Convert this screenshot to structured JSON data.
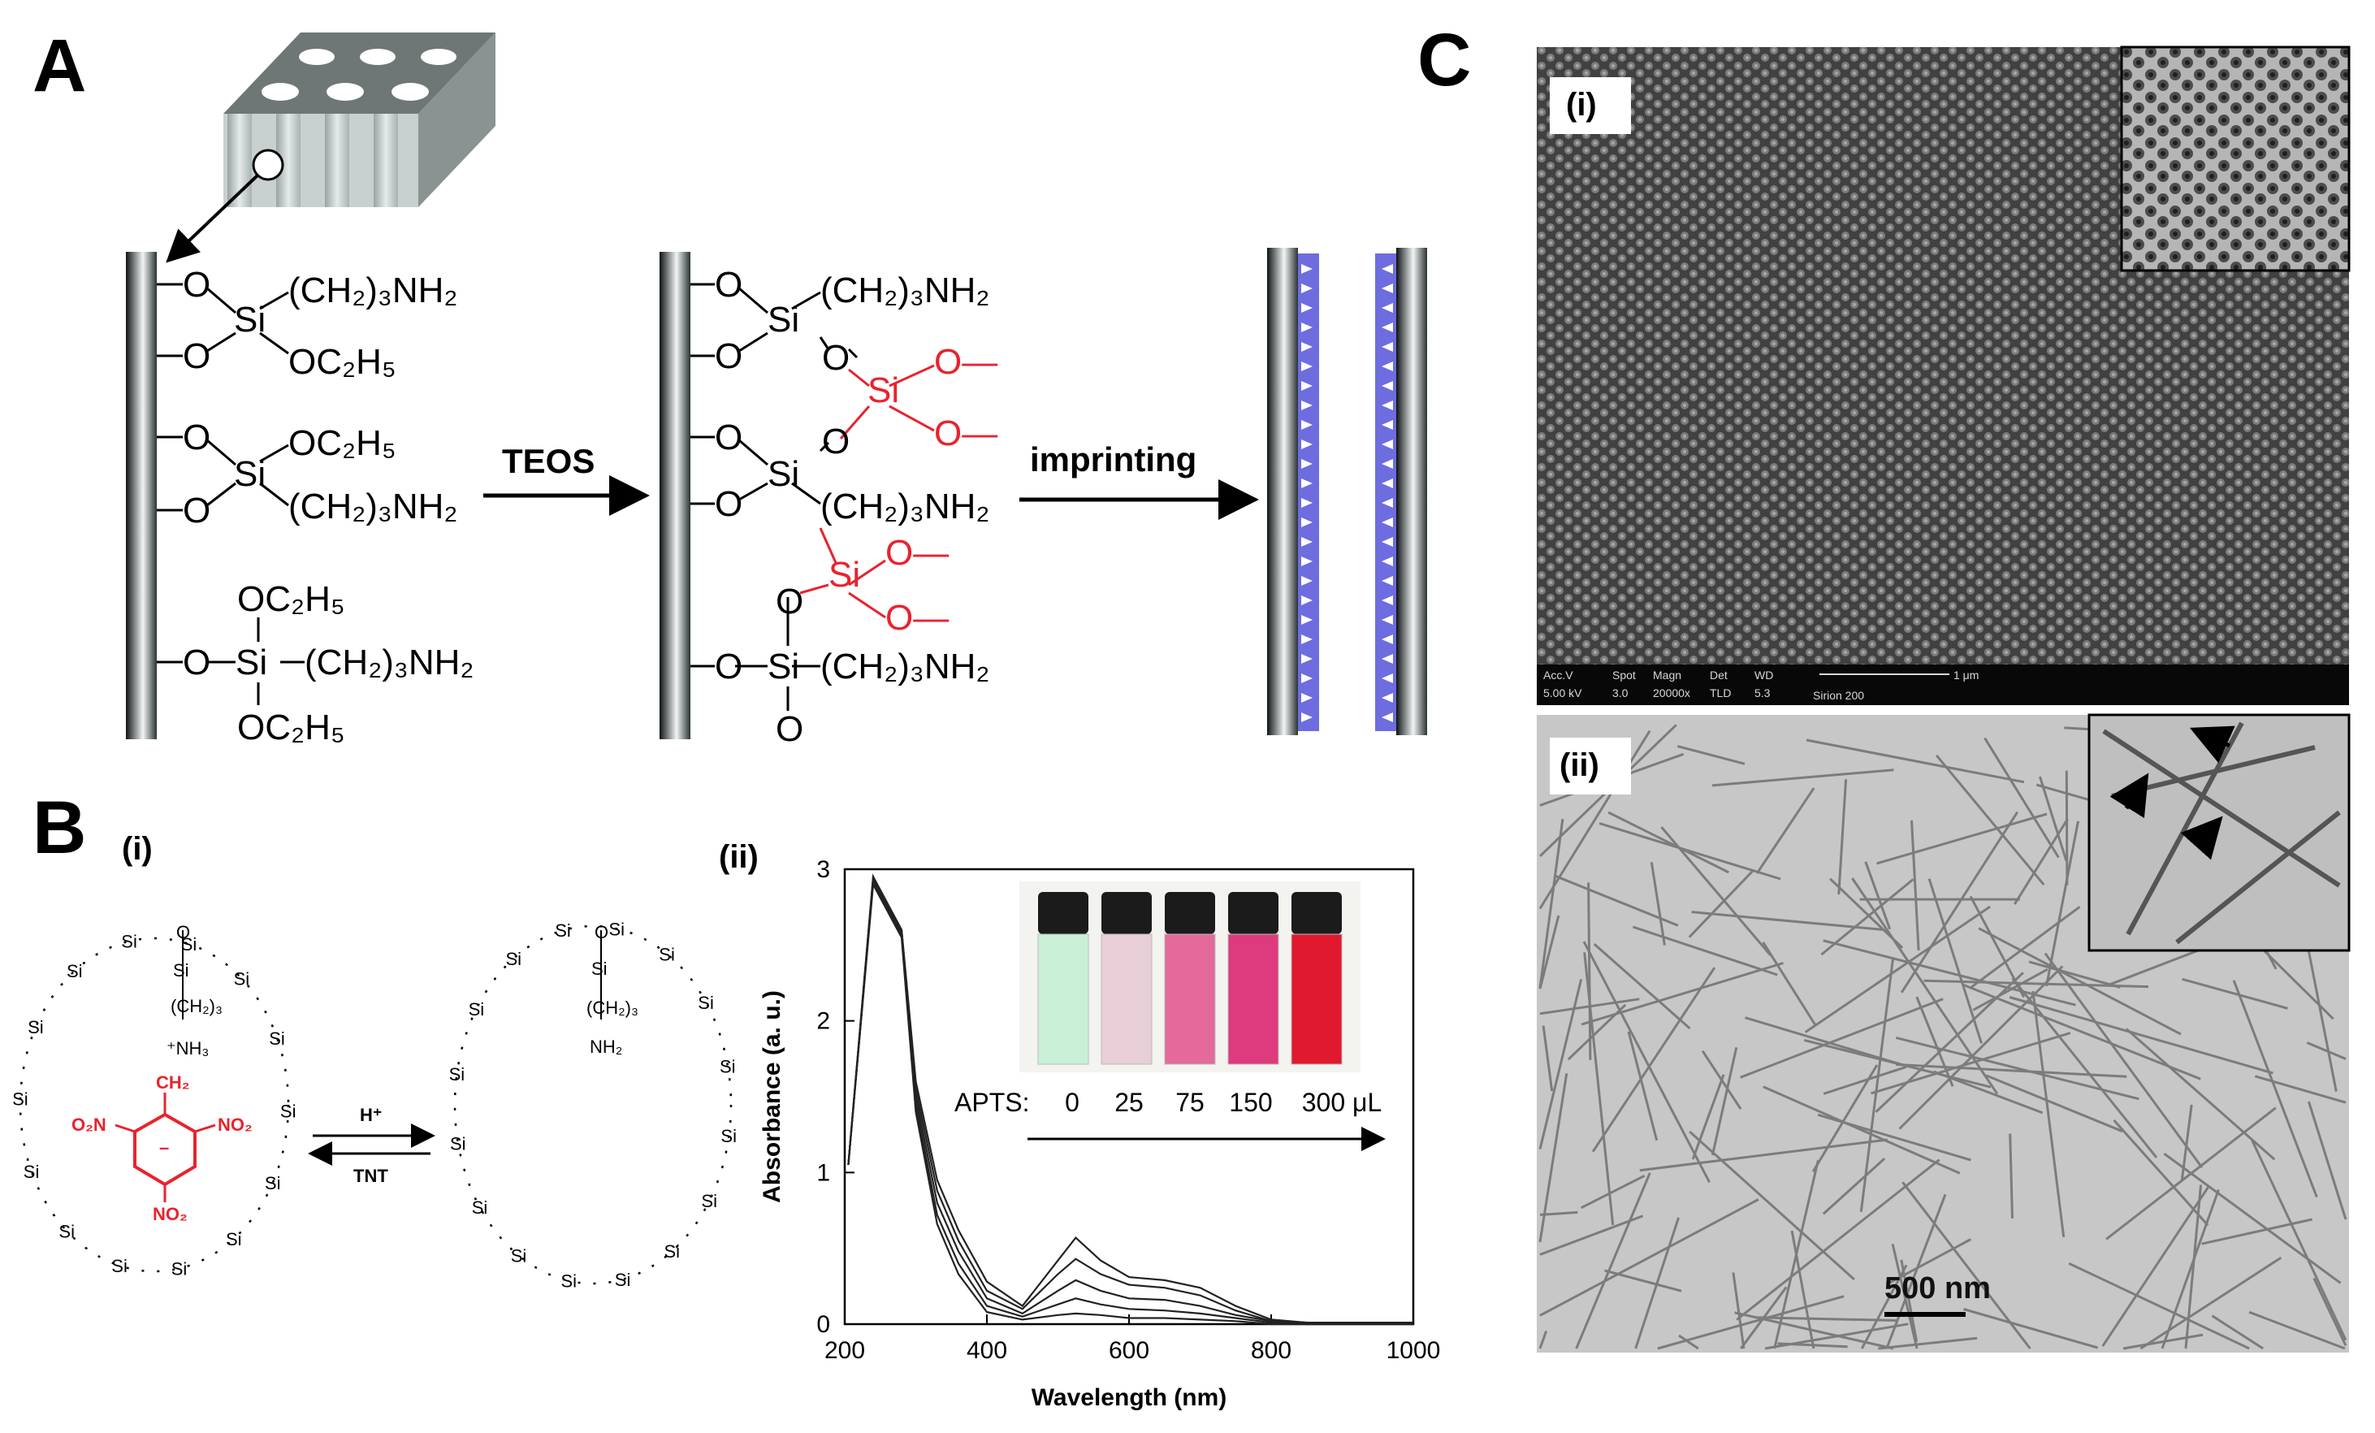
{
  "panels": {
    "a": {
      "letter": "A",
      "arrow1_label": "TEOS",
      "arrow2_label": "imprinting",
      "chem": {
        "ch2nh2": "(CH₂)₃NH₂",
        "oc2h5": "OC₂H₅",
        "o": "O",
        "si": "Si",
        "o_dash": "O—"
      }
    },
    "b": {
      "letter": "B",
      "sub_i": "(i)",
      "sub_ii": "(ii)",
      "scheme": {
        "h_plus": "H⁺",
        "tnt": "TNT",
        "si": "Si",
        "o": "O",
        "ch2_3": "(CH₂)₃",
        "nh3": "⁺NH₃",
        "nh2": "NH₂",
        "ch2": "CH₂",
        "no2": "NO₂",
        "o2n": "O₂N",
        "minus": "–"
      },
      "apts_label": "APTS:",
      "apts_values": [
        "0",
        "25",
        "75",
        "150",
        "300 μL"
      ],
      "vial_colors": [
        "#c9f0d6",
        "#e8cfd7",
        "#e36a9a",
        "#de3a7e",
        "#e0192f"
      ]
    },
    "c": {
      "letter": "C",
      "sub_i": "(i)",
      "sub_ii": "(ii)",
      "sem_meta_headers": [
        "Acc.V",
        "Spot",
        "Magn",
        "Det",
        "WD"
      ],
      "sem_meta_values": [
        "5.00 kV",
        "3.0",
        "20000x",
        "TLD",
        "5.3"
      ],
      "sem_scale_label": "1 μm",
      "sem_instrument": "Sirion 200",
      "tem_scale_label": "500 nm"
    }
  },
  "chart_data": {
    "type": "line",
    "xlabel": "Wavelength (nm)",
    "ylabel": "Absorbance (a. u.)",
    "xlim": [
      200,
      1000
    ],
    "ylim": [
      0,
      3
    ],
    "xticks": [
      200,
      400,
      600,
      800,
      1000
    ],
    "yticks": [
      0,
      1,
      2,
      3
    ],
    "series": [
      {
        "x": [
          205,
          240,
          280,
          300,
          330,
          360,
          400,
          450,
          500,
          525,
          560,
          600,
          650,
          700,
          750,
          800,
          850,
          1000
        ],
        "values": [
          1.05,
          2.95,
          2.6,
          1.6,
          0.95,
          0.62,
          0.28,
          0.12,
          0.42,
          0.57,
          0.42,
          0.31,
          0.29,
          0.24,
          0.12,
          0.03,
          0.01,
          0.01
        ]
      },
      {
        "x": [
          205,
          240,
          280,
          300,
          330,
          360,
          400,
          450,
          500,
          525,
          560,
          600,
          650,
          700,
          750,
          800,
          850,
          1000
        ],
        "values": [
          1.05,
          2.95,
          2.6,
          1.55,
          0.88,
          0.55,
          0.22,
          0.1,
          0.33,
          0.43,
          0.33,
          0.26,
          0.24,
          0.19,
          0.09,
          0.02,
          0.01,
          0.01
        ]
      },
      {
        "x": [
          205,
          240,
          280,
          300,
          330,
          360,
          400,
          450,
          500,
          525,
          560,
          600,
          650,
          700,
          750,
          800,
          850,
          1000
        ],
        "values": [
          1.05,
          2.93,
          2.58,
          1.5,
          0.8,
          0.48,
          0.17,
          0.07,
          0.22,
          0.29,
          0.22,
          0.17,
          0.16,
          0.12,
          0.06,
          0.02,
          0.01,
          0.01
        ]
      },
      {
        "x": [
          205,
          240,
          280,
          300,
          330,
          360,
          400,
          450,
          500,
          525,
          560,
          600,
          650,
          700,
          750,
          800,
          850,
          1000
        ],
        "values": [
          1.05,
          2.92,
          2.57,
          1.45,
          0.72,
          0.4,
          0.12,
          0.05,
          0.13,
          0.17,
          0.13,
          0.1,
          0.09,
          0.07,
          0.04,
          0.01,
          0.0,
          0.0
        ]
      },
      {
        "x": [
          205,
          240,
          280,
          300,
          330,
          360,
          400,
          450,
          500,
          525,
          560,
          600,
          650,
          700,
          750,
          800,
          850,
          1000
        ],
        "values": [
          1.05,
          2.9,
          2.55,
          1.4,
          0.66,
          0.33,
          0.08,
          0.03,
          0.06,
          0.07,
          0.06,
          0.04,
          0.04,
          0.03,
          0.02,
          0.0,
          0.0,
          0.0
        ]
      }
    ]
  }
}
